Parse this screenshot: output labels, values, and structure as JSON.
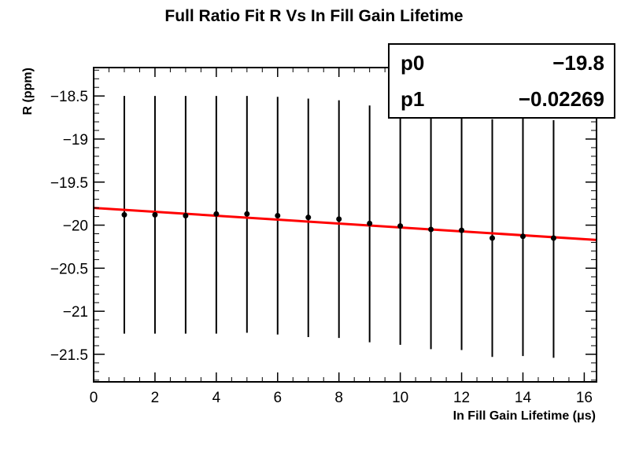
{
  "chart_data": {
    "type": "scatter",
    "title": "Full Ratio Fit R Vs In Fill Gain Lifetime",
    "xlabel": "In Fill Gain Lifetime (μs)",
    "ylabel": "R (ppm)",
    "xlim": [
      0,
      16.4
    ],
    "ylim": [
      -21.82,
      -18.17
    ],
    "x_ticks": [
      0,
      2,
      4,
      6,
      8,
      10,
      12,
      14,
      16
    ],
    "x_tick_labels": [
      "0",
      "2",
      "4",
      "6",
      "8",
      "10",
      "12",
      "14",
      "16"
    ],
    "y_ticks": [
      -18.5,
      -19,
      -19.5,
      -20,
      -20.5,
      -21,
      -21.5
    ],
    "y_tick_labels": [
      "−18.5",
      "−19",
      "−19.5",
      "−20",
      "−20.5",
      "−21",
      "−21.5"
    ],
    "grid": false,
    "series": [
      {
        "type": "scatter",
        "color": "#000000",
        "x": [
          1,
          2,
          3,
          4,
          5,
          6,
          7,
          8,
          9,
          10,
          11,
          12,
          13,
          14,
          15
        ],
        "y": [
          -19.88,
          -19.88,
          -19.89,
          -19.87,
          -19.87,
          -19.89,
          -19.91,
          -19.93,
          -19.98,
          -20.01,
          -20.05,
          -20.06,
          -20.15,
          -20.13,
          -20.15
        ],
        "yerr_low": [
          -21.26,
          -21.26,
          -21.26,
          -21.26,
          -21.25,
          -21.27,
          -21.3,
          -21.31,
          -21.36,
          -21.39,
          -21.44,
          -21.45,
          -21.53,
          -21.52,
          -21.54
        ],
        "yerr_high": [
          -18.5,
          -18.5,
          -18.5,
          -18.5,
          -18.5,
          -18.51,
          -18.53,
          -18.55,
          -18.61,
          -18.64,
          -18.67,
          -18.68,
          -18.77,
          -18.76,
          -18.78
        ]
      },
      {
        "type": "line",
        "color": "#ff0000",
        "fit": {
          "p0": -19.8,
          "p1": -0.02269
        },
        "x_range": [
          0,
          16.4
        ]
      }
    ],
    "stats_box": {
      "rows": [
        {
          "name": "p0",
          "value": "−19.8"
        },
        {
          "name": "p1",
          "value": "−0.02269"
        }
      ]
    }
  }
}
